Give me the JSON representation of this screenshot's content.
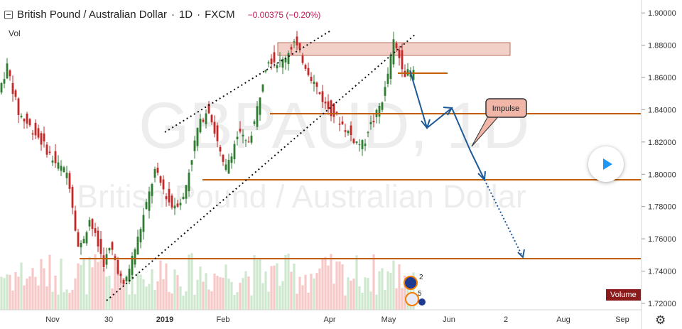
{
  "header": {
    "symbol": "British Pound / Australian Dollar",
    "interval": "1D",
    "source": "FXCM",
    "change": "−0.00375 (−0.20%)"
  },
  "watermark": {
    "ticker": "GBPAUD, 1D",
    "name": "British Pound / Australian Dollar"
  },
  "volume_label": "Vol",
  "volume_tag": "Volume",
  "annotation": "Impulse",
  "badges": [
    "2",
    "5"
  ],
  "chart_data": {
    "type": "candlestick",
    "x_ticks": [
      "Nov",
      "30",
      "2019",
      "Feb",
      "Apr",
      "May",
      "Jun",
      "2",
      "Aug",
      "Sep"
    ],
    "y_ticks": [
      "1.90000",
      "1.88000",
      "1.86000",
      "1.84000",
      "1.82000",
      "1.80000",
      "1.78000",
      "1.76000",
      "1.74000",
      "1.72000"
    ],
    "ylim": [
      1.716,
      1.908
    ],
    "price_levels": [
      1.8698,
      1.8435,
      1.8,
      1.7478
    ],
    "resistance_zone": [
      1.8812,
      1.8895
    ],
    "projection_path": [
      1.8712,
      1.833,
      1.8465,
      1.8185,
      1.8,
      1.749
    ],
    "colors": {
      "up": "#2e7d32",
      "down": "#c62828",
      "level": "#c25e00",
      "arrow": "#1f5a96"
    }
  },
  "colors": {
    "up": "#2e7d32",
    "down": "#c62828",
    "level": "#c25e00",
    "arrow": "#1f5a96"
  }
}
